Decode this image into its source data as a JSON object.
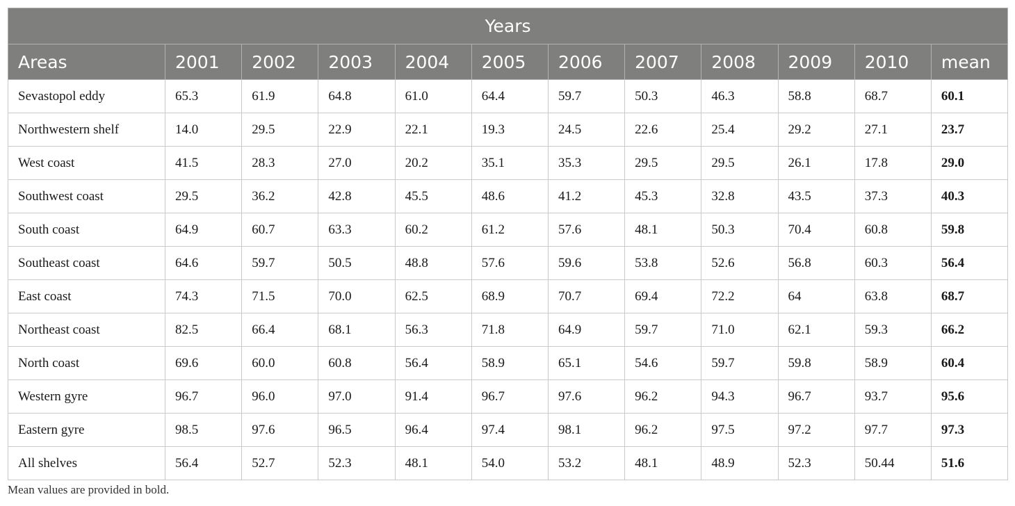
{
  "table": {
    "group_header": "Years",
    "columns": [
      "Areas",
      "2001",
      "2002",
      "2003",
      "2004",
      "2005",
      "2006",
      "2007",
      "2008",
      "2009",
      "2010",
      "mean"
    ],
    "rows": [
      {
        "area": "Sevastopol eddy",
        "values": [
          "65.3",
          "61.9",
          "64.8",
          "61.0",
          "64.4",
          "59.7",
          "50.3",
          "46.3",
          "58.8",
          "68.7"
        ],
        "mean": "60.1"
      },
      {
        "area": "Northwestern shelf",
        "values": [
          "14.0",
          "29.5",
          "22.9",
          "22.1",
          "19.3",
          "24.5",
          "22.6",
          "25.4",
          "29.2",
          "27.1"
        ],
        "mean": "23.7"
      },
      {
        "area": "West coast",
        "values": [
          "41.5",
          "28.3",
          "27.0",
          "20.2",
          "35.1",
          "35.3",
          "29.5",
          "29.5",
          "26.1",
          "17.8"
        ],
        "mean": "29.0"
      },
      {
        "area": "Southwest coast",
        "values": [
          "29.5",
          "36.2",
          "42.8",
          "45.5",
          "48.6",
          "41.2",
          "45.3",
          "32.8",
          "43.5",
          "37.3"
        ],
        "mean": "40.3"
      },
      {
        "area": "South coast",
        "values": [
          "64.9",
          "60.7",
          "63.3",
          "60.2",
          "61.2",
          "57.6",
          "48.1",
          "50.3",
          "70.4",
          "60.8"
        ],
        "mean": "59.8"
      },
      {
        "area": "Southeast coast",
        "values": [
          "64.6",
          "59.7",
          "50.5",
          "48.8",
          "57.6",
          "59.6",
          "53.8",
          "52.6",
          "56.8",
          "60.3"
        ],
        "mean": "56.4"
      },
      {
        "area": "East coast",
        "values": [
          "74.3",
          "71.5",
          "70.0",
          "62.5",
          "68.9",
          "70.7",
          "69.4",
          "72.2",
          "64",
          "63.8"
        ],
        "mean": "68.7"
      },
      {
        "area": "Northeast coast",
        "values": [
          "82.5",
          "66.4",
          "68.1",
          "56.3",
          "71.8",
          "64.9",
          "59.7",
          "71.0",
          "62.1",
          "59.3"
        ],
        "mean": "66.2"
      },
      {
        "area": "North coast",
        "values": [
          "69.6",
          "60.0",
          "60.8",
          "56.4",
          "58.9",
          "65.1",
          "54.6",
          "59.7",
          "59.8",
          "58.9"
        ],
        "mean": "60.4"
      },
      {
        "area": "Western gyre",
        "values": [
          "96.7",
          "96.0",
          "97.0",
          "91.4",
          "96.7",
          "97.6",
          "96.2",
          "94.3",
          "96.7",
          "93.7"
        ],
        "mean": "95.6"
      },
      {
        "area": "Eastern gyre",
        "values": [
          "98.5",
          "97.6",
          "96.5",
          "96.4",
          "97.4",
          "98.1",
          "96.2",
          "97.5",
          "97.2",
          "97.7"
        ],
        "mean": "97.3"
      },
      {
        "area": "All shelves",
        "values": [
          "56.4",
          "52.7",
          "52.3",
          "48.1",
          "54.0",
          "53.2",
          "48.1",
          "48.9",
          "52.3",
          "50.44"
        ],
        "mean": "51.6"
      }
    ]
  },
  "footnote": "Mean values are provided in bold.",
  "colors": {
    "header_bg": "#7f7f7e",
    "header_text": "#ffffff",
    "grid": "#c9c9c9"
  }
}
